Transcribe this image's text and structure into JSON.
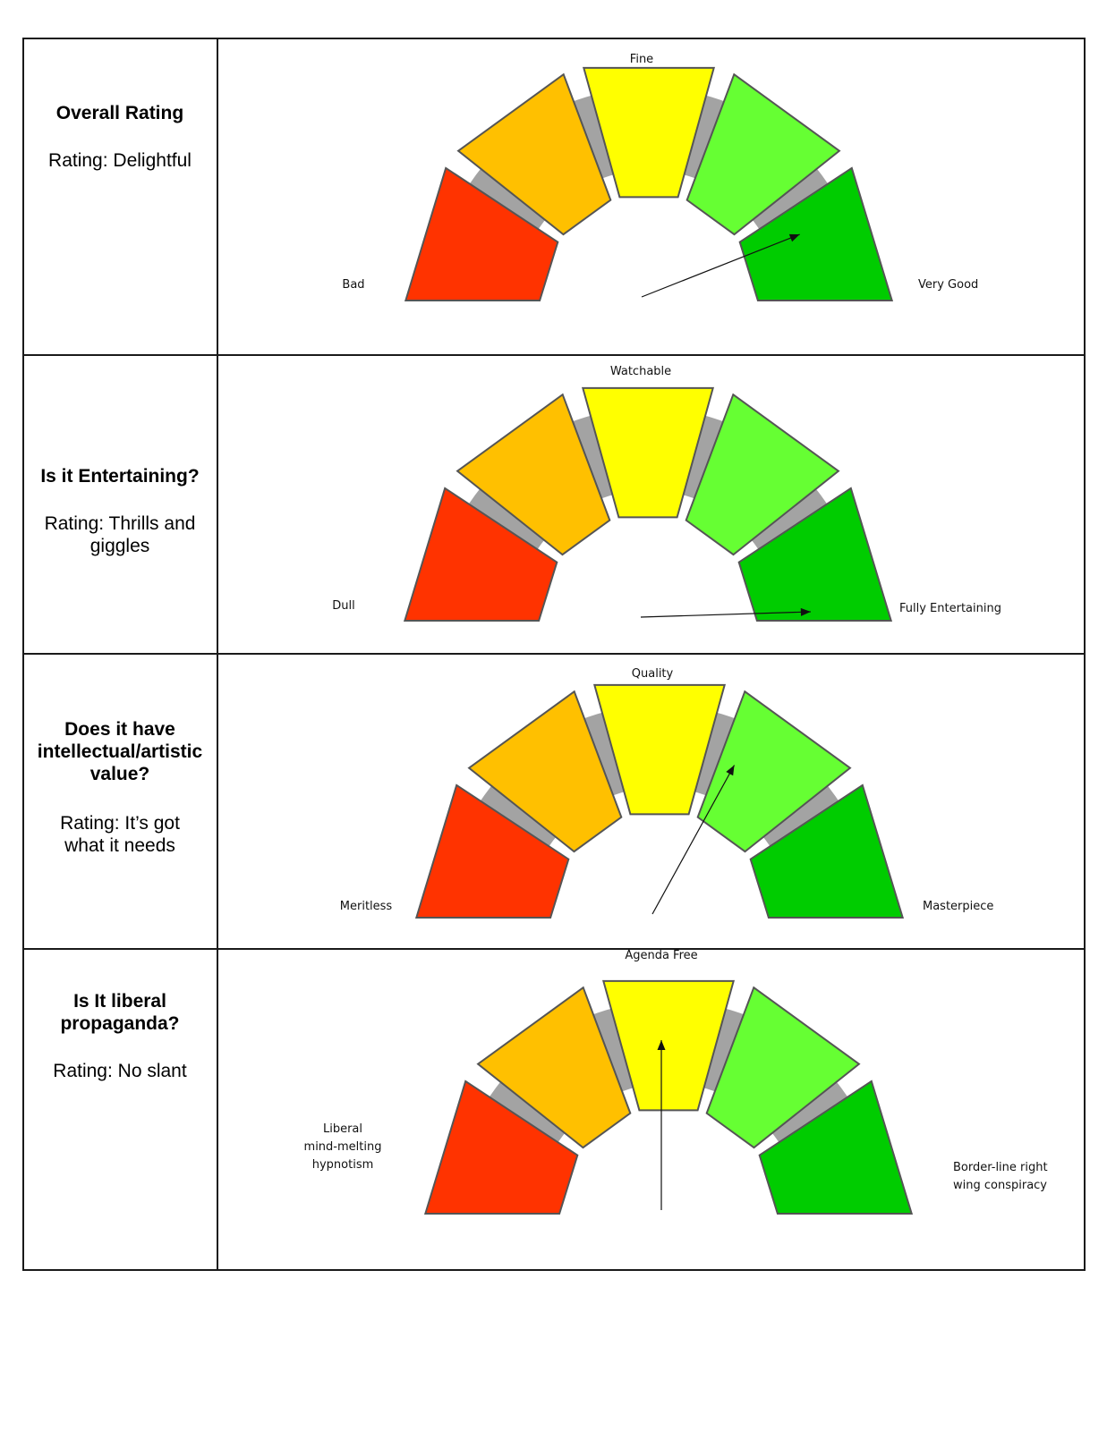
{
  "colors": {
    "segments": [
      "#ff3300",
      "#ffc000",
      "#ffff00",
      "#66ff33",
      "#00cc00"
    ],
    "track": "#a3a3a3",
    "border": "#1a1a1a"
  },
  "rows": [
    {
      "title_lines": [
        "Overall Rating"
      ],
      "rating_lines": [
        "Rating: Delightful"
      ],
      "gauge": {
        "left_label_lines": [
          "Bad"
        ],
        "top_label": "Fine",
        "right_label_lines": [
          "Very Good"
        ],
        "needle_level": 0.88
      }
    },
    {
      "title_lines": [
        "Is it Entertaining?"
      ],
      "rating_lines": [
        "Rating: Thrills and",
        "giggles"
      ],
      "gauge": {
        "left_label_lines": [
          "Dull"
        ],
        "top_label": "Watchable",
        "right_label_lines": [
          "Fully Entertaining"
        ],
        "needle_level": 0.99
      }
    },
    {
      "title_lines": [
        "Does it have",
        "intellectual/artistic",
        "value?"
      ],
      "rating_lines": [
        "Rating: It’s got",
        "what it needs"
      ],
      "gauge": {
        "left_label_lines": [
          "Meritless"
        ],
        "top_label": "Quality",
        "right_label_lines": [
          "Masterpiece"
        ],
        "needle_level": 0.66
      }
    },
    {
      "title_lines": [
        "Is It liberal",
        "propaganda?"
      ],
      "rating_lines": [
        "Rating: No slant"
      ],
      "gauge": {
        "left_label_lines": [
          "Liberal",
          "mind-melting",
          "hypnotism"
        ],
        "top_label": "Agenda Free",
        "right_label_lines": [
          "Border-line right",
          "wing conspiracy"
        ],
        "needle_level": 0.5
      }
    }
  ]
}
